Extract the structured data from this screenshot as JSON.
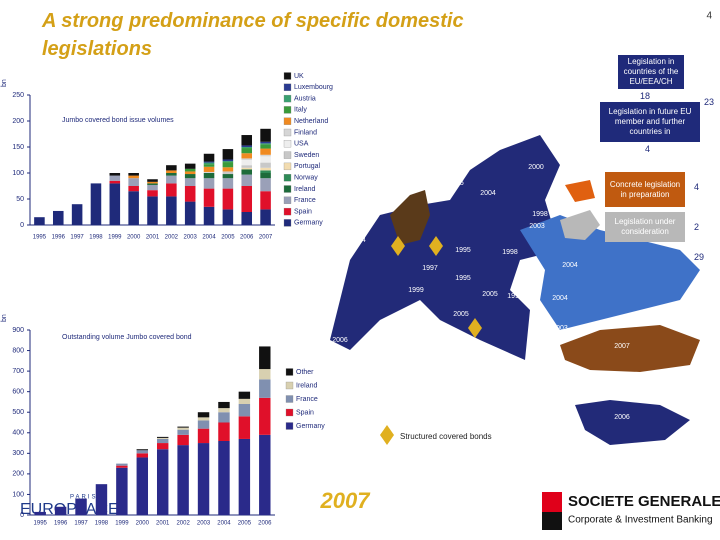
{
  "title": "A strong predominance of specific domestic legislations",
  "page_number": "4",
  "chart_data": [
    {
      "type": "bar",
      "stacked": true,
      "title": "Jumbo covered bond issue volumes",
      "y_label": "bn",
      "categories": [
        "1995",
        "1996",
        "1997",
        "1998",
        "1999",
        "2000",
        "2001",
        "2002",
        "2003",
        "2004",
        "2005",
        "2006",
        "2007"
      ],
      "ylim": [
        0,
        250
      ],
      "yticks": [
        0,
        50,
        100,
        150,
        200,
        250
      ],
      "series": [
        {
          "name": "Germany",
          "color": "#1f2a7a",
          "values": [
            15,
            27,
            40,
            80,
            80,
            65,
            55,
            55,
            45,
            35,
            30,
            25,
            30
          ]
        },
        {
          "name": "Spain",
          "color": "#e0102a",
          "values": [
            0,
            0,
            0,
            0,
            5,
            10,
            12,
            25,
            30,
            35,
            40,
            50,
            35
          ]
        },
        {
          "name": "France",
          "color": "#9aa0b8",
          "values": [
            0,
            0,
            0,
            0,
            10,
            15,
            10,
            15,
            15,
            20,
            20,
            22,
            25
          ]
        },
        {
          "name": "Ireland",
          "color": "#1d6b3a",
          "values": [
            0,
            0,
            0,
            0,
            0,
            0,
            3,
            5,
            8,
            10,
            8,
            10,
            10
          ]
        },
        {
          "name": "Norway",
          "color": "#2e8b57",
          "values": [
            0,
            0,
            0,
            0,
            0,
            0,
            0,
            0,
            0,
            0,
            0,
            0,
            5
          ]
        },
        {
          "name": "Portugal",
          "color": "#f2dcb0",
          "values": [
            0,
            0,
            0,
            0,
            0,
            0,
            0,
            0,
            0,
            0,
            0,
            3,
            5
          ]
        },
        {
          "name": "Sweden",
          "color": "#c8c8c8",
          "values": [
            0,
            0,
            0,
            0,
            0,
            0,
            0,
            0,
            0,
            0,
            5,
            5,
            10
          ]
        },
        {
          "name": "USA",
          "color": "#eeeeee",
          "values": [
            0,
            0,
            0,
            0,
            0,
            0,
            0,
            0,
            0,
            0,
            0,
            10,
            12
          ]
        },
        {
          "name": "Finland",
          "color": "#d6d6d6",
          "values": [
            0,
            0,
            0,
            0,
            0,
            0,
            0,
            0,
            0,
            2,
            0,
            3,
            3
          ]
        },
        {
          "name": "Netherland",
          "color": "#f08a20",
          "values": [
            0,
            0,
            0,
            0,
            0,
            5,
            3,
            5,
            5,
            10,
            8,
            10,
            12
          ]
        },
        {
          "name": "Italy",
          "color": "#3a9a3a",
          "values": [
            0,
            0,
            0,
            0,
            0,
            0,
            0,
            0,
            5,
            5,
            10,
            10,
            8
          ]
        },
        {
          "name": "Austria",
          "color": "#3aa070",
          "values": [
            0,
            0,
            0,
            0,
            0,
            0,
            0,
            0,
            0,
            3,
            2,
            2,
            2
          ]
        },
        {
          "name": "Luxembourg",
          "color": "#2a3a90",
          "values": [
            0,
            0,
            0,
            0,
            0,
            0,
            0,
            0,
            0,
            2,
            3,
            3,
            3
          ]
        },
        {
          "name": "UK",
          "color": "#111111",
          "values": [
            0,
            0,
            0,
            0,
            5,
            5,
            5,
            10,
            10,
            15,
            20,
            20,
            25
          ]
        }
      ]
    },
    {
      "type": "bar",
      "stacked": true,
      "title": "Outstanding volume Jumbo covered bond",
      "y_label": "bn",
      "categories": [
        "1995",
        "1996",
        "1997",
        "1998",
        "1999",
        "2000",
        "2001",
        "2002",
        "2003",
        "2004",
        "2005",
        "2006"
      ],
      "ylim": [
        0,
        900
      ],
      "yticks": [
        0,
        100,
        200,
        300,
        400,
        500,
        600,
        700,
        800,
        900
      ],
      "series": [
        {
          "name": "Germany",
          "color": "#2a2a8a",
          "values": [
            15,
            40,
            80,
            150,
            230,
            280,
            320,
            340,
            350,
            360,
            370,
            390
          ]
        },
        {
          "name": "Spain",
          "color": "#e0102a",
          "values": [
            0,
            0,
            0,
            0,
            10,
            20,
            30,
            50,
            70,
            90,
            110,
            180
          ]
        },
        {
          "name": "France",
          "color": "#8090b0",
          "values": [
            0,
            0,
            0,
            0,
            10,
            15,
            20,
            25,
            40,
            50,
            60,
            90
          ]
        },
        {
          "name": "Ireland",
          "color": "#d8d0b0",
          "values": [
            0,
            0,
            0,
            0,
            0,
            0,
            5,
            10,
            15,
            20,
            25,
            50
          ]
        },
        {
          "name": "Other",
          "color": "#111111",
          "values": [
            0,
            0,
            0,
            0,
            0,
            5,
            5,
            5,
            25,
            30,
            35,
            110
          ]
        }
      ]
    }
  ],
  "map": {
    "labels": [
      "2000",
      "2005",
      "2004",
      "1998",
      "2003",
      "2004",
      "1995",
      "1998",
      "1997",
      "2004",
      "1999",
      "1995",
      "2005",
      "1997",
      "2004",
      "2005",
      "2003",
      "2006",
      "1993",
      "2007",
      "2007",
      "2006"
    ],
    "structured_note": "Structured covered bonds"
  },
  "legend_boxes": [
    {
      "text": "Legislation in countries of the EU/EEA/CH",
      "count": "18"
    },
    {
      "text": "Legislation in future EU member and further countries in",
      "count": "4"
    },
    {
      "text": "Concrete legislation in preparation",
      "count": "4"
    },
    {
      "text": "Legislation under consideration",
      "count": "2"
    }
  ],
  "group_total": "23",
  "grand_total": "29",
  "footer": {
    "year": "2007",
    "europlace_top": "PARIS",
    "europlace": "EUROPLACE",
    "bank": "SOCIETE GENERALE",
    "bank_sub": "Corporate & Investment Banking"
  }
}
